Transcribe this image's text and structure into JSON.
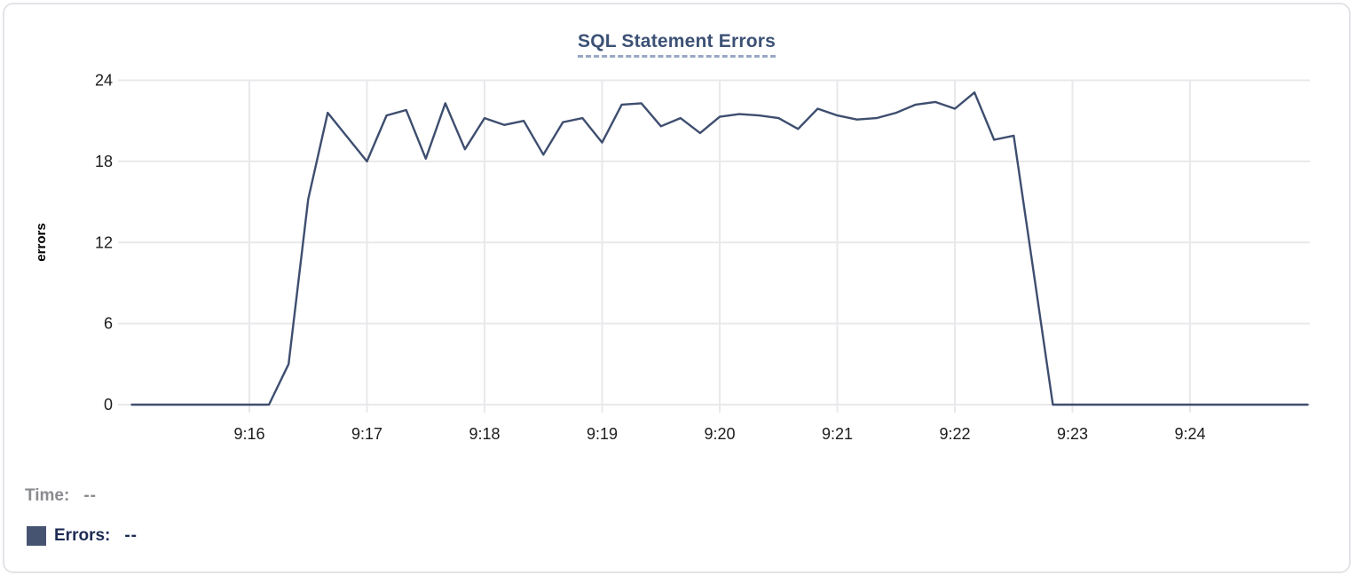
{
  "chart_data": {
    "type": "line",
    "title": "SQL Statement Errors",
    "xlabel": "",
    "ylabel": "errors",
    "ylim": [
      0,
      24
    ],
    "y_ticks": [
      0,
      6,
      12,
      18,
      24
    ],
    "x_tick_labels": [
      "9:16",
      "9:17",
      "9:18",
      "9:19",
      "9:20",
      "9:21",
      "9:22",
      "9:23",
      "9:24"
    ],
    "x_axis_start": "9:15:00",
    "x_axis_end": "9:25:00",
    "grid": true,
    "legend_position": "bottom-left",
    "series": [
      {
        "name": "Errors",
        "color": "#3e4e6f",
        "start_time": "9:15:00",
        "interval_seconds": 10,
        "values": [
          0,
          0,
          0,
          0,
          0,
          0,
          0,
          0,
          3,
          15.2,
          21.6,
          19.8,
          18,
          21.4,
          21.8,
          18.2,
          22.3,
          18.9,
          21.2,
          20.7,
          21,
          18.5,
          20.9,
          21.2,
          19.4,
          22.2,
          22.3,
          20.6,
          21.2,
          20.1,
          21.3,
          21.5,
          21.4,
          21.2,
          20.4,
          21.9,
          21.4,
          21.1,
          21.2,
          21.6,
          22.2,
          22.4,
          21.9,
          23.1,
          19.6,
          19.9,
          10,
          0,
          0,
          0,
          0,
          0,
          0,
          0,
          0,
          0,
          0,
          0,
          0,
          0,
          0
        ]
      }
    ]
  },
  "readouts": {
    "time_label": "Time:",
    "time_value": "--",
    "errors_label": "Errors:",
    "errors_value": "--",
    "errors_swatch_color": "#475471"
  },
  "colors": {
    "title": "#3c5175",
    "title_underline": "#9aa7c5",
    "grid": "#e9e9ec",
    "axis_text": "#1c1c1e",
    "line": "#3e4e6f",
    "time_readout_text": "#8a8b8f",
    "errors_readout_text": "#1d2b55",
    "card_border": "#e3e4e8"
  }
}
